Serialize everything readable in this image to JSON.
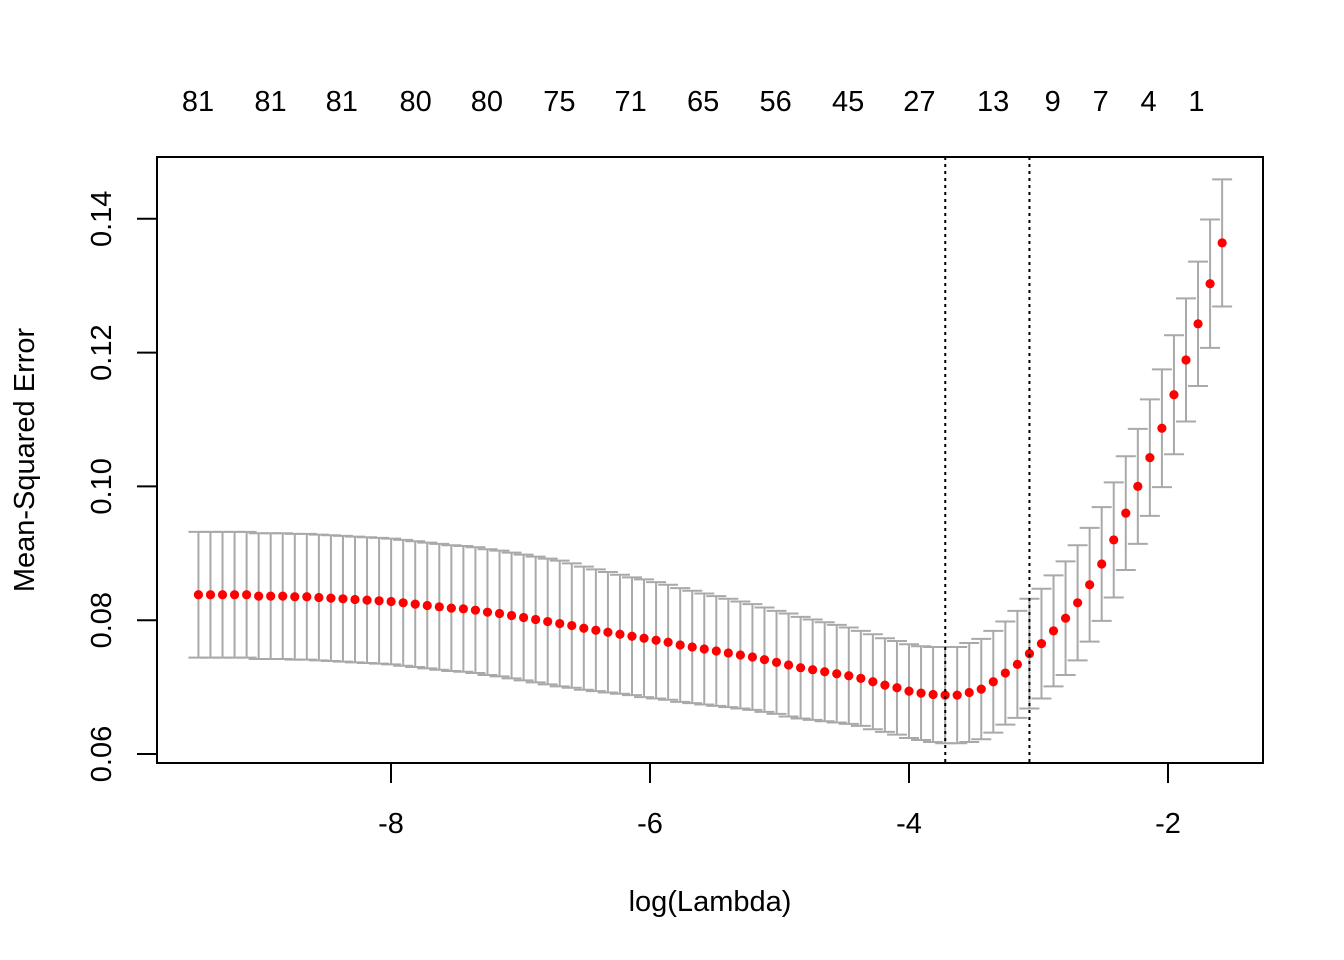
{
  "chart_data": {
    "type": "scatter",
    "subtype": "cross-validation error bars",
    "title": "",
    "xlabel": "log(Lambda)",
    "ylabel": "Mean-Squared Error",
    "xlim": [
      -9.8,
      -1.25
    ],
    "ylim": [
      0.06,
      0.15
    ],
    "grid": false,
    "x_ticks": [
      -8,
      -6,
      -4,
      -2
    ],
    "x_tick_labels": [
      "-8",
      "-6",
      "-4",
      "-2"
    ],
    "y_ticks": [
      0.06,
      0.08,
      0.1,
      0.12,
      0.14
    ],
    "y_tick_labels": [
      "0.06",
      "0.08",
      "0.10",
      "0.12",
      "0.14"
    ],
    "top_axis": {
      "positions": [
        -9.49,
        -8.93,
        -8.38,
        -7.81,
        -7.26,
        -6.7,
        -6.15,
        -5.59,
        -5.03,
        -4.47,
        -3.92,
        -3.35,
        -2.89,
        -2.52,
        -2.15,
        -1.78
      ],
      "labels": [
        "81",
        "81",
        "81",
        "80",
        "80",
        "75",
        "71",
        "65",
        "56",
        "45",
        "27",
        "13",
        "9",
        "7",
        "4",
        "1"
      ]
    },
    "log_lambda_start": -9.487,
    "log_lambda_step": 0.093,
    "mse": [
      0.0838,
      0.0838,
      0.0838,
      0.0838,
      0.0838,
      0.0836,
      0.0836,
      0.0836,
      0.0835,
      0.0835,
      0.0834,
      0.0833,
      0.0832,
      0.0831,
      0.083,
      0.0829,
      0.0828,
      0.0826,
      0.0824,
      0.0822,
      0.082,
      0.0818,
      0.0817,
      0.0815,
      0.0812,
      0.081,
      0.0807,
      0.0804,
      0.0801,
      0.0798,
      0.0795,
      0.0792,
      0.0788,
      0.0785,
      0.0782,
      0.0779,
      0.0776,
      0.0773,
      0.077,
      0.0767,
      0.0763,
      0.076,
      0.0757,
      0.0754,
      0.0751,
      0.0748,
      0.0745,
      0.0741,
      0.0737,
      0.0733,
      0.0729,
      0.0726,
      0.0723,
      0.072,
      0.0717,
      0.0713,
      0.0708,
      0.0703,
      0.0699,
      0.0694,
      0.0691,
      0.0689,
      0.0688,
      0.0688,
      0.0692,
      0.0697,
      0.0708,
      0.0721,
      0.0734,
      0.075,
      0.0765,
      0.0784,
      0.0803,
      0.0826,
      0.0853,
      0.0884,
      0.092,
      0.096,
      0.1,
      0.1043,
      0.1087,
      0.1137,
      0.1189,
      0.1243,
      0.1303,
      0.1364
    ],
    "se": [
      0.0094,
      0.0094,
      0.0094,
      0.0094,
      0.0094,
      0.0094,
      0.0094,
      0.0094,
      0.0094,
      0.0094,
      0.0094,
      0.0094,
      0.0094,
      0.0094,
      0.0094,
      0.0094,
      0.0094,
      0.0094,
      0.0094,
      0.0094,
      0.0094,
      0.0094,
      0.0094,
      0.0094,
      0.0094,
      0.0094,
      0.0094,
      0.0094,
      0.0094,
      0.0094,
      0.0094,
      0.0093,
      0.0092,
      0.0091,
      0.009,
      0.0089,
      0.0088,
      0.0088,
      0.0087,
      0.0086,
      0.0085,
      0.0084,
      0.0083,
      0.0082,
      0.0081,
      0.008,
      0.0079,
      0.0078,
      0.0077,
      0.0077,
      0.0076,
      0.0075,
      0.0074,
      0.0073,
      0.0072,
      0.0071,
      0.0071,
      0.007,
      0.007,
      0.007,
      0.007,
      0.0071,
      0.0072,
      0.0072,
      0.0074,
      0.0075,
      0.0076,
      0.0077,
      0.008,
      0.0082,
      0.0082,
      0.0083,
      0.0085,
      0.0086,
      0.0085,
      0.0085,
      0.0086,
      0.0085,
      0.0086,
      0.0087,
      0.0088,
      0.0089,
      0.0092,
      0.0093,
      0.0096,
      0.0095
    ],
    "vlines": [
      -3.72,
      -3.07
    ],
    "colors": {
      "point": "#ff0000",
      "errorbar": "#a9a9a9",
      "vline": "#000000",
      "axis": "#000000"
    }
  }
}
